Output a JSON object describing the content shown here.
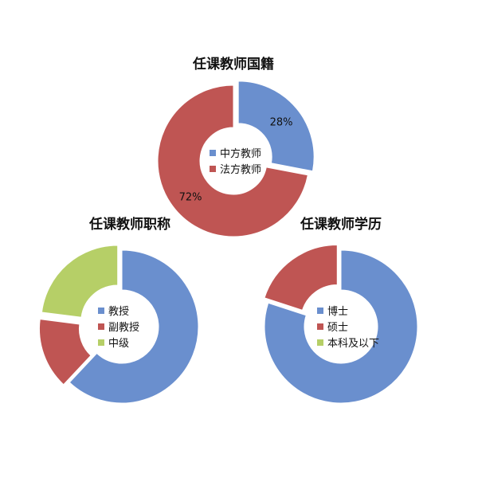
{
  "chart_data": [
    {
      "type": "pie",
      "title": "任课教师国籍",
      "categories": [
        "中方教师",
        "法方教师"
      ],
      "values": [
        28,
        72
      ],
      "data_labels": [
        "28%",
        "72%"
      ],
      "colors": [
        "#6a8fce",
        "#bf5553"
      ],
      "legend": "center"
    },
    {
      "type": "pie",
      "title": "任课教师职称",
      "categories": [
        "教授",
        "副教授",
        "中级"
      ],
      "values": [
        62,
        15,
        23
      ],
      "colors": [
        "#6a8fce",
        "#bf5553",
        "#b6cf67"
      ],
      "legend": "center"
    },
    {
      "type": "pie",
      "title": "任课教师学历",
      "categories": [
        "博士",
        "硕士",
        "本科及以下"
      ],
      "values": [
        80,
        20,
        0
      ],
      "colors": [
        "#6a8fce",
        "#bf5553",
        "#b6cf67"
      ],
      "legend": "center"
    }
  ]
}
